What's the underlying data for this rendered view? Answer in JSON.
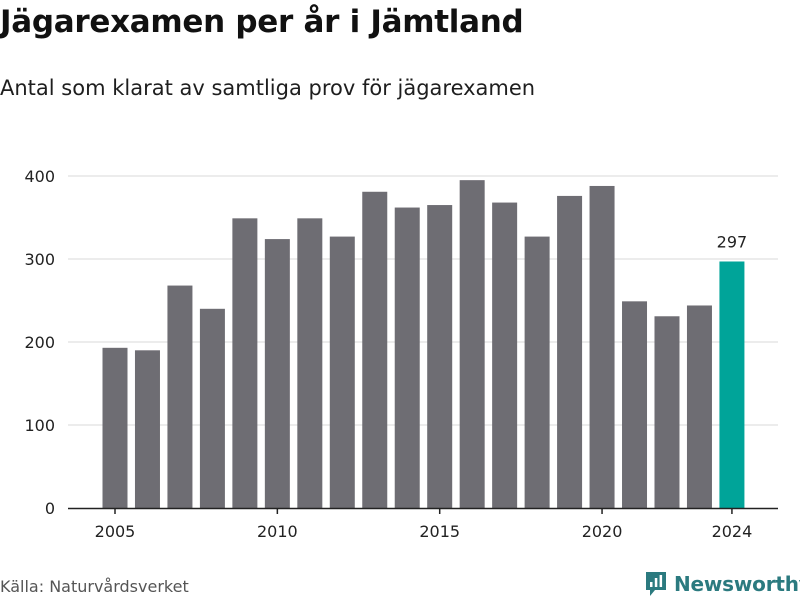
{
  "header": {
    "title": "Jägarexamen per år i Jämtland",
    "subtitle": "Antal som klarat av samtliga prov för jägarexamen"
  },
  "footer": {
    "source": "Källa: Naturvårdsverket",
    "brand": "Newsworthy"
  },
  "colors": {
    "bar": "#6e6d73",
    "highlight": "#00a499",
    "grid": "#d9d9d9",
    "axis": "#222222",
    "brand": "#2b7a7f"
  },
  "icons": {
    "brand_logo": "newsworthy-chart-icon"
  },
  "chart_data": {
    "type": "bar",
    "title": "Jägarexamen per år i Jämtland",
    "subtitle": "Antal som klarat av samtliga prov för jägarexamen",
    "xlabel": "",
    "ylabel": "",
    "categories": [
      2005,
      2006,
      2007,
      2008,
      2009,
      2010,
      2011,
      2012,
      2013,
      2014,
      2015,
      2016,
      2017,
      2018,
      2019,
      2020,
      2021,
      2022,
      2023,
      2024
    ],
    "values": [
      193,
      190,
      268,
      240,
      349,
      324,
      349,
      327,
      381,
      362,
      365,
      395,
      368,
      327,
      376,
      388,
      249,
      231,
      244,
      297
    ],
    "highlight_category": 2024,
    "data_labels": [
      {
        "category": 2024,
        "text": "297"
      }
    ],
    "ylim": [
      0,
      400
    ],
    "yticks": [
      0,
      100,
      200,
      300,
      400
    ],
    "xticks": [
      2005,
      2010,
      2015,
      2020,
      2024
    ],
    "grid": true,
    "legend": "none"
  }
}
